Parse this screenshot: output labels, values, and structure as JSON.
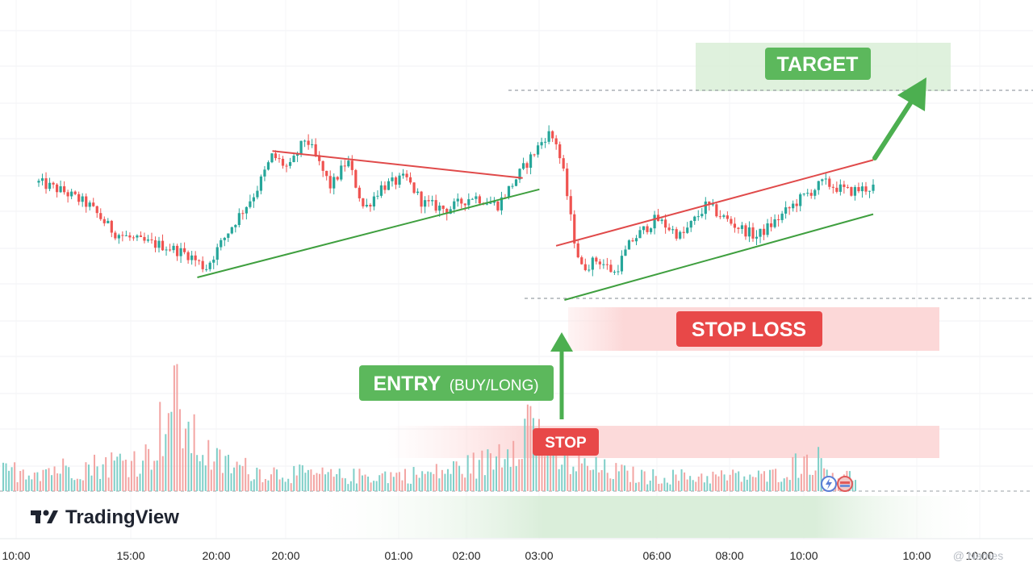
{
  "brand": {
    "name": "TradingView"
  },
  "watermark": {
    "text": "@ Names"
  },
  "colors": {
    "up": "#26a69a",
    "down": "#ef5350",
    "volume_up": "#7fcfc8",
    "volume_down": "#f3a5a3",
    "trend_red": "#e04a4a",
    "trend_green": "#3f9f3f",
    "entry_green": "#5cb85c",
    "stop_red": "#e84848"
  },
  "chart_data": {
    "type": "candlestick",
    "title": "",
    "xlabel": "",
    "ylabel": "",
    "grid": true,
    "x_ticks": [
      "10:00",
      "15:00",
      "20:00",
      "20:00",
      "01:00",
      "02:00",
      "03:00",
      "06:00",
      "08:00",
      "10:00",
      "10:00",
      "10:00"
    ],
    "price_path": [
      [
        0,
        62
      ],
      [
        3,
        58
      ],
      [
        6,
        52
      ],
      [
        9,
        40
      ],
      [
        12,
        36
      ],
      [
        15,
        34
      ],
      [
        18,
        30
      ],
      [
        20,
        24
      ],
      [
        23,
        42
      ],
      [
        26,
        58
      ],
      [
        28,
        74
      ],
      [
        30,
        68
      ],
      [
        32,
        82
      ],
      [
        35,
        60
      ],
      [
        37,
        72
      ],
      [
        39,
        50
      ],
      [
        41,
        60
      ],
      [
        44,
        64
      ],
      [
        46,
        53
      ],
      [
        49,
        50
      ],
      [
        52,
        56
      ],
      [
        55,
        52
      ],
      [
        58,
        68
      ],
      [
        61,
        84
      ],
      [
        62,
        80
      ],
      [
        63,
        64
      ],
      [
        64,
        40
      ],
      [
        65,
        24
      ],
      [
        67,
        28
      ],
      [
        69,
        22
      ],
      [
        71,
        36
      ],
      [
        74,
        46
      ],
      [
        77,
        38
      ],
      [
        80,
        52
      ],
      [
        83,
        44
      ],
      [
        86,
        38
      ],
      [
        88,
        44
      ],
      [
        91,
        54
      ],
      [
        94,
        62
      ],
      [
        97,
        58
      ],
      [
        100,
        60
      ]
    ],
    "volume_profile": [
      [
        0,
        8
      ],
      [
        10,
        10
      ],
      [
        17,
        14
      ],
      [
        20,
        38
      ],
      [
        22,
        22
      ],
      [
        25,
        12
      ],
      [
        30,
        8
      ],
      [
        40,
        6
      ],
      [
        50,
        7
      ],
      [
        57,
        12
      ],
      [
        62,
        30
      ],
      [
        65,
        12
      ],
      [
        75,
        6
      ],
      [
        90,
        6
      ],
      [
        95,
        14
      ],
      [
        98,
        6
      ],
      [
        100,
        6
      ]
    ],
    "trendlines": [
      {
        "color": "red",
        "from": [
          28,
          76
        ],
        "to": [
          58,
          64
        ]
      },
      {
        "color": "green",
        "from": [
          19,
          20
        ],
        "to": [
          60,
          59
        ]
      },
      {
        "color": "red",
        "from": [
          62,
          34
        ],
        "to": [
          100,
          72
        ]
      },
      {
        "color": "green",
        "from": [
          63,
          10
        ],
        "to": [
          100,
          48
        ]
      }
    ],
    "levels": {
      "target": 82,
      "stop_loss": 26
    }
  },
  "annotations": {
    "target": "TARGET",
    "stop_loss": "STOP LOSS",
    "entry": "ENTRY",
    "entry_sub": "(BUY/LONG)",
    "stop": "STOP"
  }
}
